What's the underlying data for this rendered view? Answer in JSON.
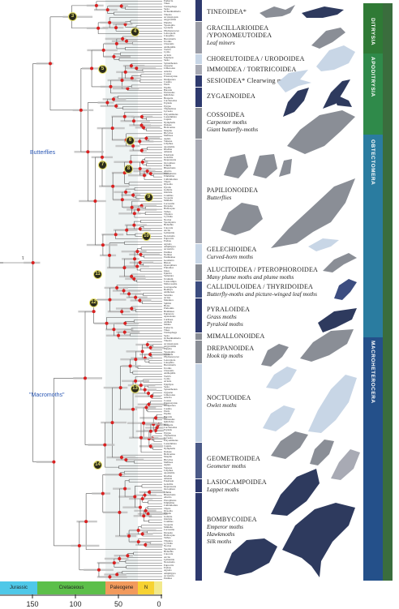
{
  "annotations": {
    "butterflies": "Butterflies",
    "macromoths": "\"Macromoths\"",
    "tau": "τ"
  },
  "markers": [
    "3",
    "4",
    "5",
    "6",
    "7",
    "8",
    "9",
    "10",
    "11",
    "12",
    "13",
    "14"
  ],
  "tip_names": [
    "Eudarcia",
    "Tinea",
    "Trichophaga",
    "Sesia",
    "Ochsenheimeria",
    "Tineola",
    "Acrolepiopsis",
    "Argyresthia",
    "Plutella",
    "Ypsolopha",
    "Lyonetia",
    "Phyllonorycter",
    "Leucoptera",
    "Caloptilia",
    "Bucculatrix",
    "Urodus",
    "Choreutis",
    "Anthophila",
    "Tortrix",
    "Cydia",
    "Acleris",
    "Epiphyas",
    "Sesia",
    "Synanthedon",
    "Zygaena",
    "Limacodes",
    "Adscita",
    "Cossus",
    "Prionoxystus",
    "Dudgeonea",
    "Castnia",
    "Pieris",
    "Papilio",
    "Baronia",
    "Parnassius",
    "Iphiclides",
    "Hesperia",
    "Carcharodus",
    "Erynnis",
    "Pyrgus",
    "Thymelicus",
    "Lycaena",
    "Polyommatus",
    "Lasiommata",
    "Cupido",
    "Nymphalis",
    "Danaus",
    "Heliconius",
    "Morpho",
    "Bicyclus",
    "Melitaea",
    "Aglais",
    "Vanessa",
    "Libythea",
    "Apodemia",
    "Riodina",
    "Amauta",
    "Euselasia",
    "Gelechia",
    "Depressaria",
    "Oecophora",
    "Ethmia",
    "Blastobasis",
    "Alucita",
    "Pterophorus",
    "Emmelina",
    "Calliduloides",
    "Thyris",
    "Dysodia",
    "Pyralis",
    "Galleria",
    "Ostrinia",
    "Crambus",
    "Scoparia",
    "Mimallo",
    "Lacosoma",
    "Drepana",
    "Habrosyne",
    "Tethea",
    "Thyatira",
    "Cyclidia",
    "Noctua",
    "Spodoptera",
    "Heliothis",
    "Catocala",
    "Arctia",
    "Lymantria",
    "Notodonta",
    "Euproctis",
    "Erebus",
    "Agrotis",
    "Amphipyra",
    "Acronicta",
    "Panthea",
    "Nolinae",
    "Pantheinae",
    "Geometra",
    "Biston",
    "Operophtera",
    "Ennomos",
    "Idaea",
    "Epirrita",
    "Sematura",
    "Uranium",
    "Lasiocampa",
    "Malacosoma",
    "Gastropacha",
    "Bombyx",
    "Antheraea",
    "Saturnia",
    "Actias",
    "Manduca",
    "Sphinx",
    "Hyles",
    "Endromis",
    "Brahmaea",
    "Eupterote",
    "Apatelodes",
    "Carthaea",
    "Anthela",
    "Mirina"
  ],
  "superfamilies": [
    {
      "name": "TINEOIDEA*",
      "subs": []
    },
    {
      "name": "GRACILLARIOIDEA",
      "subs": [
        "/YPONOMEUTOIDEA",
        "Leaf miners"
      ]
    },
    {
      "name": "CHOREUTOIDEA / URODOIDEA",
      "subs": []
    },
    {
      "name": "IMMOIDEA / TORTRICOIDEA",
      "subs": []
    },
    {
      "name": "SESIOIDEA* Clearwing moths",
      "subs": []
    },
    {
      "name": "ZYGAENOIDEA",
      "subs": []
    },
    {
      "name": "COSSOIDEA",
      "subs": [
        "Carpenter moths",
        "Giant butterfly-moths"
      ]
    },
    {
      "name": "PAPILIONOIDEA",
      "subs": [
        "Butterflies"
      ]
    },
    {
      "name": "GELECHIOIDEA",
      "subs": [
        "Curved-horn moths"
      ]
    },
    {
      "name": "ALUCITOIDEA / PTEROPHOROIDEA",
      "subs": [
        "Many plume moths and plume moths"
      ]
    },
    {
      "name": "CALLIDULOIDEA / THYRIDOIDEA",
      "subs": [
        "Butterfly-moths and picture-winged leaf moths"
      ]
    },
    {
      "name": "PYRALOIDEA",
      "subs": [
        "Grass moths",
        "Pyraloid moths"
      ]
    },
    {
      "name": "MIMALLONOIDEA",
      "subs": []
    },
    {
      "name": "DREPANOIDEA",
      "subs": [
        "Hook tip moths"
      ]
    },
    {
      "name": "NOCTUOIDEA",
      "subs": [
        "Owlet moths"
      ]
    },
    {
      "name": "GEOMETROIDEA",
      "subs": [
        "Geometer moths"
      ]
    },
    {
      "name": "LASIOCAMPOIDEA",
      "subs": [
        "Lappet moths"
      ]
    },
    {
      "name": "BOMBYCOIDEA",
      "subs": [
        "Emperor moths",
        "Hawkmoths",
        "Silk moths"
      ]
    }
  ],
  "clade_bands": [
    {
      "name": "DITRYSIA",
      "color": "#2f7a35"
    },
    {
      "name": "APODITRYSIA",
      "color": "#2f8a4a"
    },
    {
      "name": "OBTECTOMERA",
      "color": "#2a7ca0"
    },
    {
      "name": "MACROHETEROCERA",
      "color": "#24508a"
    }
  ],
  "geologic_periods": [
    {
      "name": "Jurassic",
      "color": "#4fc8e8"
    },
    {
      "name": "Cretaceous",
      "color": "#5cbf4a"
    },
    {
      "name": "Paleogene",
      "color": "#f29a5c"
    },
    {
      "name": "N",
      "color": "#f7d232"
    },
    {
      "name": "",
      "color": "#f2e98c"
    }
  ],
  "axis_ticks": [
    "150",
    "100",
    "50",
    "0"
  ],
  "colors": {
    "branch": "#555555",
    "node": "#d92020",
    "superfamily_bar_dark": "#2e3a6e",
    "superfamily_bar_light": "#a8aab4",
    "silhouette_dark": "#2e3a5e",
    "silhouette_mid": "#8a8e96",
    "silhouette_light": "#c8d6e6"
  }
}
